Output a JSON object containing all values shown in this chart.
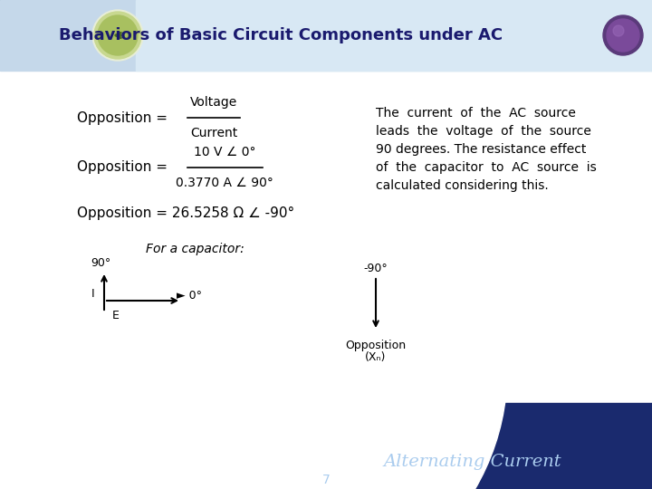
{
  "title": "Behaviors of Basic Circuit Components under AC",
  "title_color": "#1a1a6e",
  "header_bg": "#c8d8e8",
  "slide_bg": "#ffffff",
  "footer_bg": "#1a2a6e",
  "footer_text": "Alternating Current",
  "page_number": "7",
  "eq1_left": "Opposition = ",
  "eq1_num": "Voltage",
  "eq1_den": "Current",
  "eq2_left": "Opposition = ",
  "eq2_num": "10 V ∠ 0°",
  "eq2_den": "0.3770 A ∠ 90°",
  "eq3": "Opposition = 26.5258 Ω ∠ -90°",
  "desc_text": "The  current  of  the  AC  source\nleads  the  voltage  of  the  source\n90 degrees. The resistance effect\nof  the  capacitor  to  AC  source  is\ncalculated considering this.",
  "diagram_label": "For a capacitor:",
  "left_diag": {
    "axis_90": "90°",
    "axis_0": "► 0°",
    "label_I": "I",
    "label_E": "E"
  },
  "right_diag": {
    "axis_neg90": "-90°",
    "label_opposition": "Opposition",
    "label_xc": "(Xₙ)"
  }
}
